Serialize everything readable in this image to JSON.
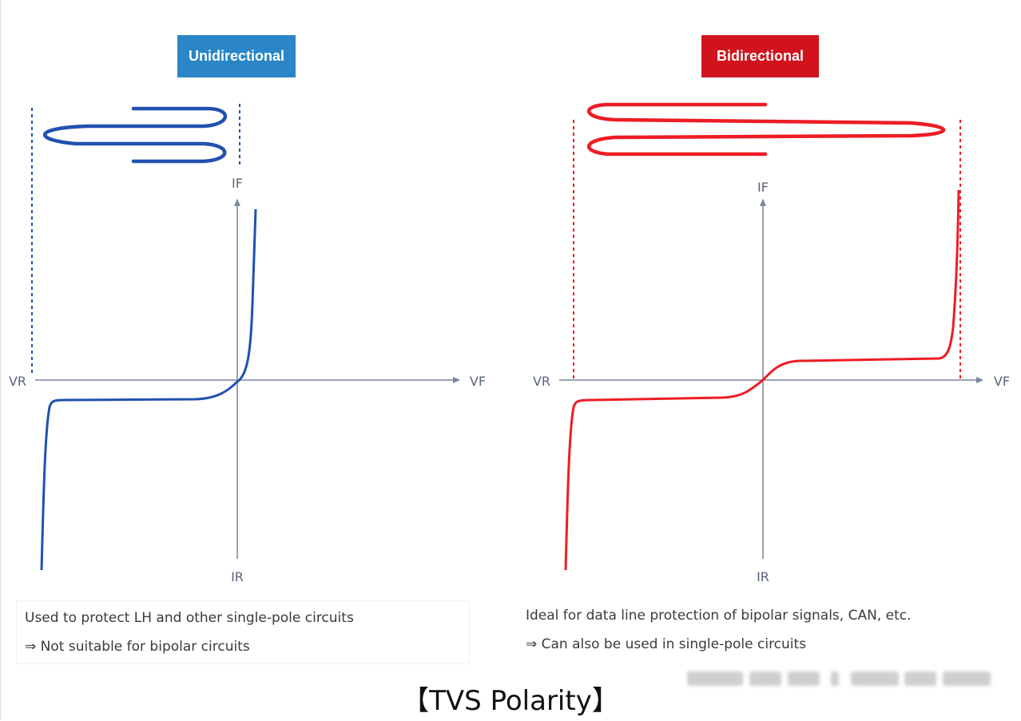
{
  "title": "【TVS Polarity】",
  "panels": [
    {
      "badge": "Unidirectional",
      "badge_color": "#2a86c6",
      "curve_color": "#2150b0",
      "axis": {
        "y_pos": "IF",
        "y_neg": "IR",
        "x_neg": "VR",
        "x_pos": "VF"
      },
      "captions": [
        "Used to protect LH and other single-pole circuits",
        "⇒ Not suitable for bipolar circuits"
      ]
    },
    {
      "badge": "Bidirectional",
      "badge_color": "#d0131d",
      "curve_color": "#ee1c25",
      "axis": {
        "y_pos": "IF",
        "y_neg": "IR",
        "x_neg": "VR",
        "x_pos": "VF"
      },
      "captions": [
        "Ideal for data line protection of bipolar signals, CAN, etc.",
        "⇒ Can also be used in single-pole circuits"
      ]
    }
  ],
  "colors": {
    "axis": "#7a869c",
    "text": "#3a3a3a"
  }
}
